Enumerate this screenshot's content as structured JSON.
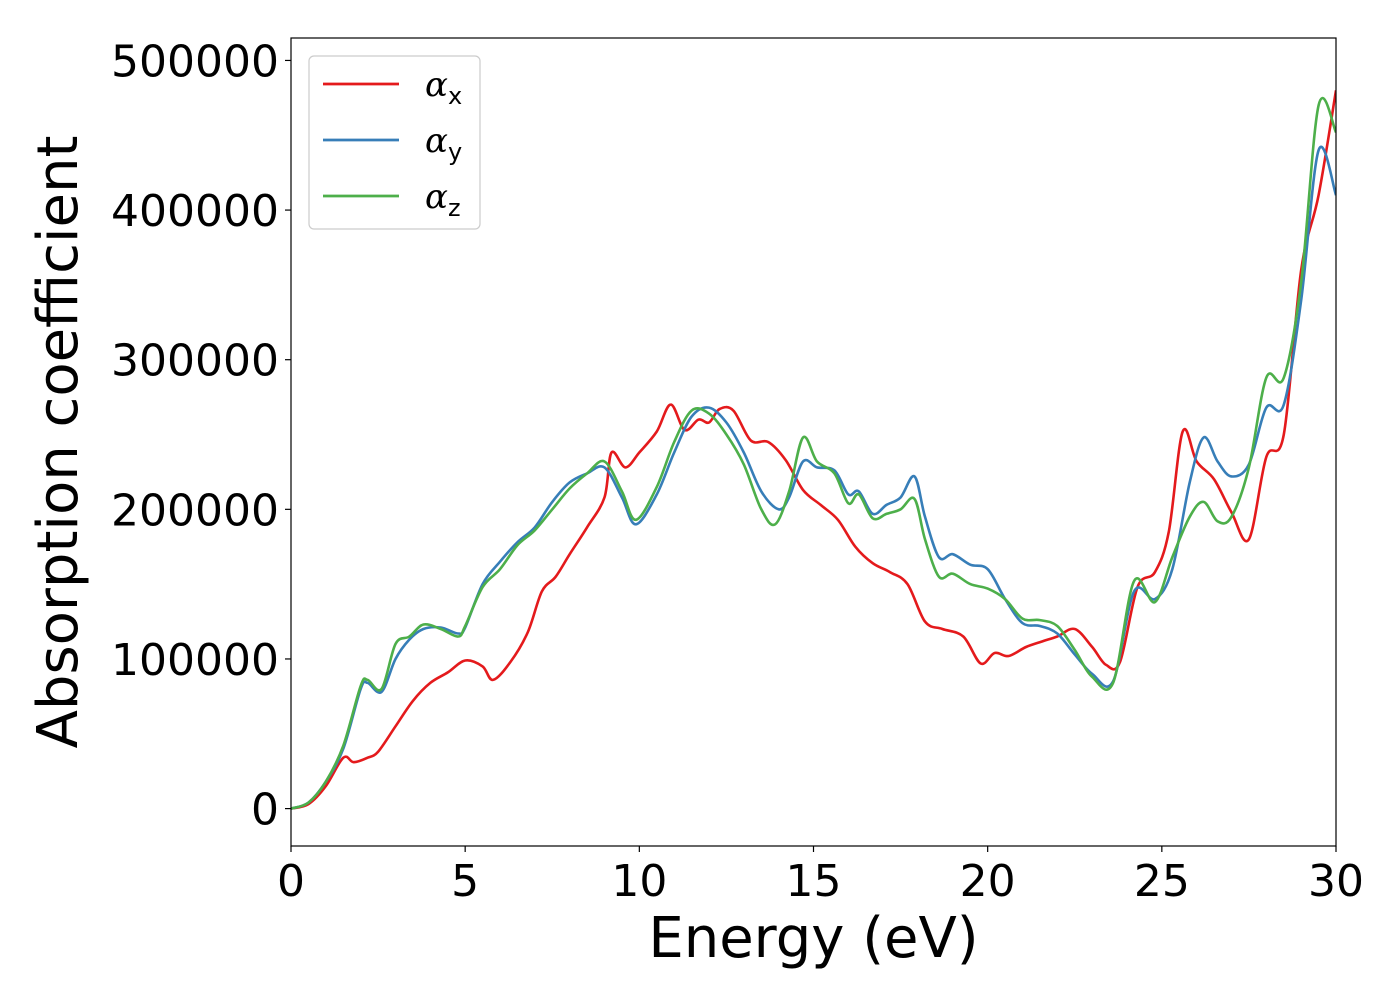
{
  "chart_data": {
    "type": "line",
    "xlabel": "Energy (eV)",
    "ylabel": "Absorption coefficient",
    "xlim": [
      0,
      30
    ],
    "ylim": [
      -25000,
      515000
    ],
    "xticks": [
      0,
      5,
      10,
      15,
      20,
      25,
      30
    ],
    "xtick_labels": [
      "0",
      "5",
      "10",
      "15",
      "20",
      "25",
      "30"
    ],
    "yticks": [
      0,
      100000,
      200000,
      300000,
      400000,
      500000
    ],
    "ytick_labels": [
      "0",
      "100000",
      "200000",
      "300000",
      "400000",
      "500000"
    ],
    "grid": false,
    "legend_position": "top-left",
    "series": [
      {
        "name": "α_x",
        "symbol": "α",
        "subscript": "x",
        "color": "#e41a1c",
        "x": [
          0,
          0.5,
          1.0,
          1.5,
          1.8,
          2.2,
          2.5,
          3.0,
          3.5,
          4.0,
          4.5,
          5.0,
          5.5,
          5.8,
          6.3,
          6.8,
          7.2,
          7.6,
          8.0,
          8.5,
          9.0,
          9.2,
          9.6,
          10.0,
          10.5,
          10.9,
          11.3,
          11.7,
          12.0,
          12.3,
          12.7,
          13.2,
          13.7,
          14.2,
          14.7,
          15.2,
          15.7,
          16.2,
          16.7,
          17.2,
          17.7,
          18.2,
          18.7,
          19.3,
          19.8,
          20.2,
          20.6,
          21.1,
          21.6,
          22.0,
          22.5,
          23.0,
          23.4,
          23.8,
          24.3,
          24.8,
          25.2,
          25.6,
          26.0,
          26.5,
          27.0,
          27.5,
          28.0,
          28.5,
          29.0,
          29.5,
          30.0
        ],
        "y": [
          0,
          3000,
          15000,
          34000,
          31000,
          34000,
          38000,
          55000,
          72000,
          84000,
          91000,
          99000,
          95000,
          86000,
          98000,
          118000,
          145000,
          155000,
          170000,
          188000,
          208000,
          238000,
          228000,
          238000,
          252000,
          270000,
          253000,
          260000,
          258000,
          267000,
          266000,
          246000,
          245000,
          233000,
          213000,
          203000,
          193000,
          175000,
          164000,
          158000,
          150000,
          125000,
          120000,
          115000,
          97000,
          104000,
          102000,
          108000,
          112000,
          115000,
          120000,
          108000,
          96000,
          98000,
          148000,
          158000,
          185000,
          252000,
          232000,
          220000,
          198000,
          180000,
          235000,
          250000,
          360000,
          410000,
          480000
        ]
      },
      {
        "name": "α_y",
        "symbol": "α",
        "subscript": "y",
        "color": "#377eb8",
        "x": [
          0,
          0.5,
          1.0,
          1.5,
          2.0,
          2.2,
          2.6,
          3.0,
          3.4,
          3.8,
          4.3,
          4.8,
          5.0,
          5.5,
          6.0,
          6.5,
          7.0,
          7.5,
          8.0,
          8.5,
          9.0,
          9.5,
          9.9,
          10.5,
          11.0,
          11.5,
          12.0,
          12.5,
          13.0,
          13.5,
          14.0,
          14.3,
          14.7,
          15.1,
          15.6,
          16.0,
          16.3,
          16.7,
          17.1,
          17.5,
          17.9,
          18.2,
          18.6,
          19.0,
          19.5,
          20.0,
          20.5,
          21.0,
          21.5,
          22.0,
          22.5,
          23.0,
          23.6,
          24.2,
          24.8,
          25.3,
          25.8,
          26.2,
          26.6,
          27.0,
          27.5,
          28.0,
          28.5,
          29.0,
          29.5,
          30.0
        ],
        "y": [
          0,
          4000,
          18000,
          40000,
          80000,
          84000,
          78000,
          100000,
          113000,
          120000,
          121000,
          117000,
          121000,
          150000,
          165000,
          178000,
          188000,
          205000,
          218000,
          224000,
          228000,
          208000,
          190000,
          210000,
          238000,
          262000,
          268000,
          258000,
          238000,
          212000,
          200000,
          208000,
          232000,
          228000,
          226000,
          210000,
          212000,
          197000,
          203000,
          208000,
          222000,
          195000,
          168000,
          170000,
          163000,
          160000,
          140000,
          124000,
          122000,
          117000,
          103000,
          90000,
          85000,
          145000,
          140000,
          160000,
          218000,
          248000,
          232000,
          222000,
          230000,
          268000,
          270000,
          340000,
          440000,
          410000
        ]
      },
      {
        "name": "α_z",
        "symbol": "α",
        "subscript": "z",
        "color": "#4daf4a",
        "x": [
          0,
          0.5,
          1.0,
          1.5,
          2.0,
          2.2,
          2.6,
          3.0,
          3.4,
          3.8,
          4.3,
          4.8,
          5.0,
          5.5,
          6.0,
          6.5,
          7.0,
          7.5,
          8.0,
          8.5,
          9.0,
          9.5,
          9.9,
          10.5,
          11.0,
          11.5,
          12.0,
          12.5,
          13.0,
          13.5,
          13.9,
          14.3,
          14.7,
          15.1,
          15.6,
          16.0,
          16.3,
          16.7,
          17.1,
          17.5,
          17.9,
          18.2,
          18.6,
          19.0,
          19.5,
          20.0,
          20.5,
          21.0,
          21.5,
          22.0,
          22.5,
          23.0,
          23.6,
          24.2,
          24.8,
          25.3,
          25.8,
          26.2,
          26.6,
          27.0,
          27.5,
          28.0,
          28.5,
          29.0,
          29.5,
          30.0
        ],
        "y": [
          0,
          4000,
          18000,
          42000,
          82000,
          86000,
          80000,
          110000,
          115000,
          123000,
          120000,
          115000,
          122000,
          148000,
          160000,
          176000,
          186000,
          200000,
          214000,
          224000,
          232000,
          212000,
          193000,
          215000,
          245000,
          266000,
          264000,
          250000,
          230000,
          200000,
          190000,
          212000,
          248000,
          232000,
          224000,
          204000,
          210000,
          194000,
          197000,
          200000,
          207000,
          180000,
          155000,
          157000,
          150000,
          147000,
          140000,
          127000,
          126000,
          122000,
          106000,
          88000,
          84000,
          152000,
          138000,
          168000,
          195000,
          205000,
          192000,
          195000,
          228000,
          288000,
          288000,
          352000,
          470000,
          452000
        ]
      }
    ]
  }
}
